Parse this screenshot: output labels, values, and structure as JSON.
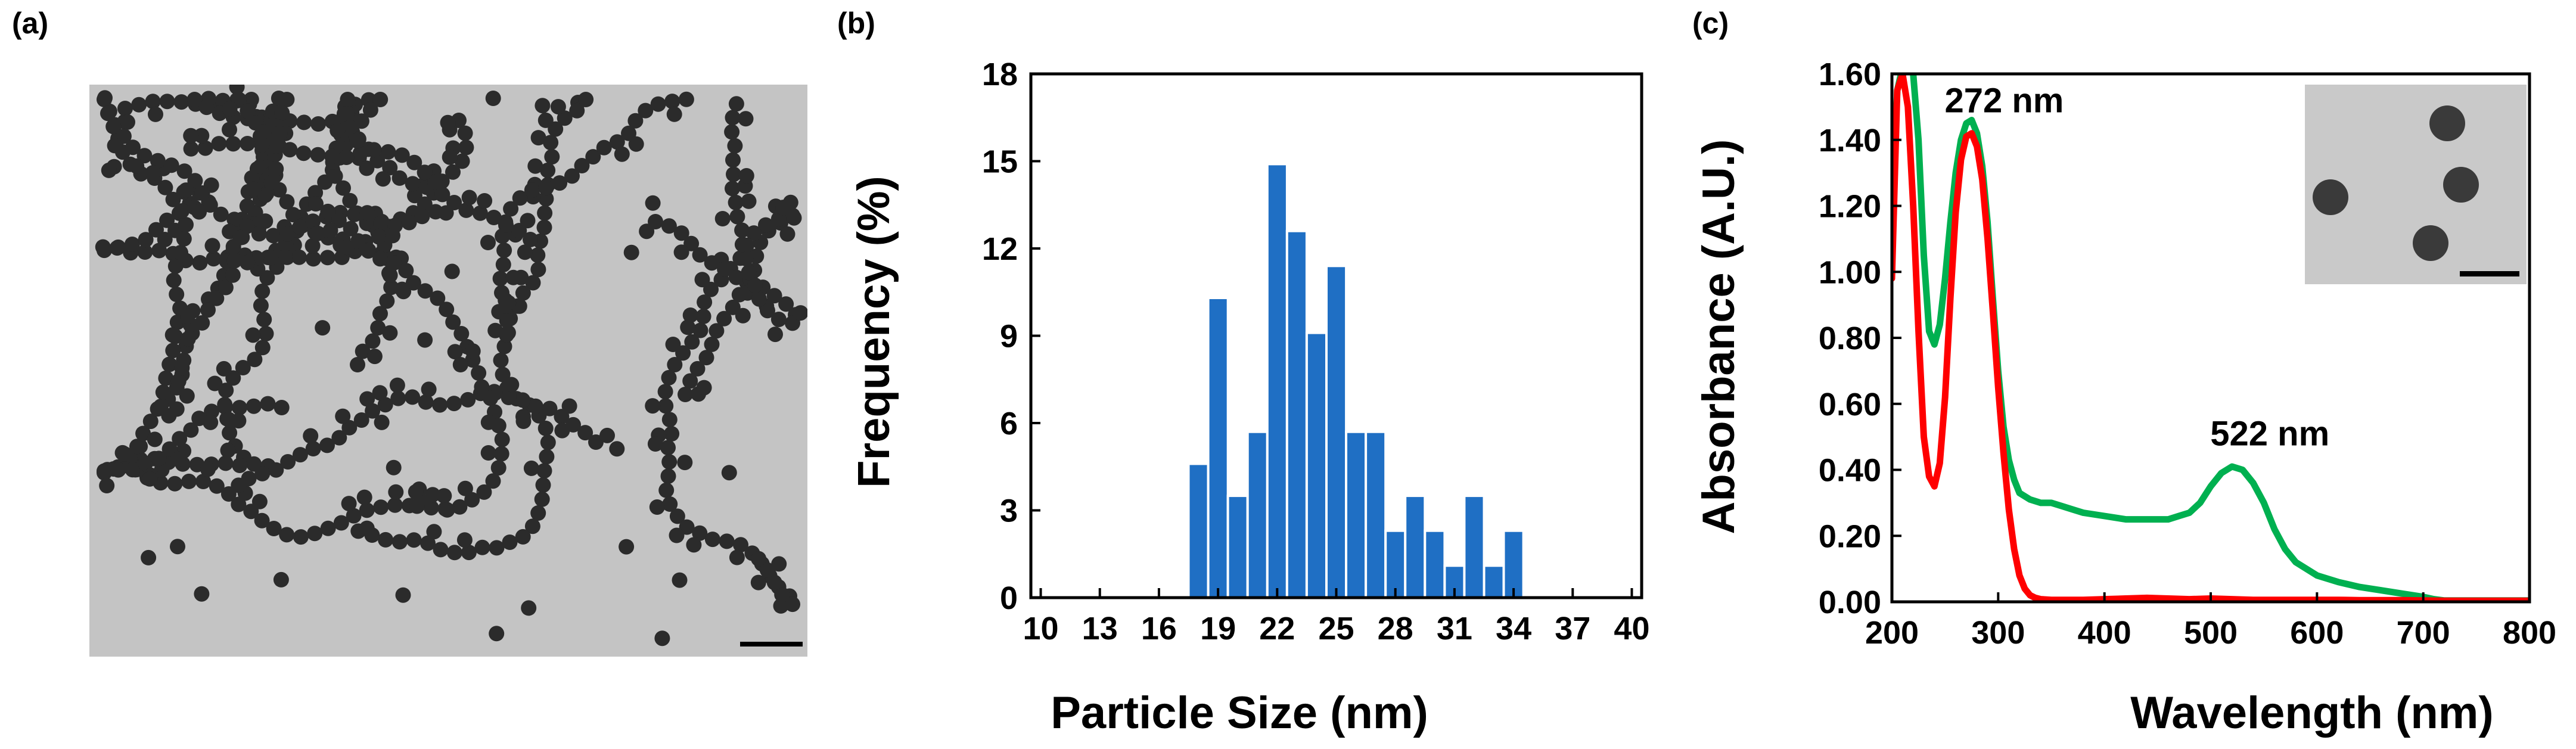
{
  "panels": {
    "a": {
      "label": "(a)"
    },
    "b": {
      "label": "(b)"
    },
    "c": {
      "label": "(c)"
    }
  },
  "chart_data": [
    {
      "type": "bar",
      "panel": "b",
      "title": "",
      "xlabel": "Particle Size (nm)",
      "ylabel": "Frequency (%)",
      "xlim": [
        9.5,
        40.5
      ],
      "ylim": [
        0,
        18
      ],
      "xticks": [
        "10",
        "13",
        "16",
        "19",
        "22",
        "25",
        "28",
        "31",
        "34",
        "37",
        "40"
      ],
      "yticks": [
        "0",
        "3",
        "6",
        "9",
        "12",
        "15",
        "18"
      ],
      "bar_color": "#1f6fc4",
      "x": [
        18,
        19,
        20,
        21,
        22,
        23,
        24,
        25,
        26,
        27,
        28,
        29,
        30,
        31,
        32,
        33,
        34
      ],
      "values": [
        4.6,
        10.3,
        3.5,
        5.7,
        14.9,
        12.6,
        9.1,
        11.4,
        5.7,
        5.7,
        2.3,
        3.5,
        2.3,
        1.1,
        3.5,
        1.1,
        2.3
      ],
      "grid": false
    },
    {
      "type": "line",
      "panel": "c",
      "title": "",
      "xlabel": "Wavelength (nm)",
      "ylabel": "Absorbance (A.U.)",
      "xlim": [
        200,
        800
      ],
      "ylim": [
        0,
        1.6
      ],
      "xticks": [
        "200",
        "300",
        "400",
        "500",
        "600",
        "700",
        "800"
      ],
      "yticks": [
        "0.00",
        "0.20",
        "0.40",
        "0.60",
        "0.80",
        "1.00",
        "1.20",
        "1.40",
        "1.60"
      ],
      "annotations": [
        {
          "text": "272 nm",
          "x": 272,
          "y": 1.52
        },
        {
          "text": "522 nm",
          "x": 522,
          "y": 0.51
        }
      ],
      "series": [
        {
          "color": "#00b050",
          "x": [
            200,
            205,
            210,
            215,
            220,
            225,
            230,
            235,
            240,
            245,
            250,
            255,
            260,
            265,
            270,
            275,
            280,
            285,
            290,
            295,
            300,
            305,
            310,
            315,
            320,
            330,
            340,
            350,
            360,
            370,
            380,
            400,
            420,
            440,
            460,
            470,
            480,
            490,
            500,
            510,
            520,
            530,
            540,
            550,
            560,
            570,
            580,
            600,
            620,
            640,
            660,
            680,
            700,
            710,
            720,
            740,
            760,
            780,
            800
          ],
          "y": [
            1.15,
            1.55,
            1.62,
            1.62,
            1.6,
            1.4,
            1.05,
            0.82,
            0.78,
            0.84,
            0.98,
            1.15,
            1.3,
            1.4,
            1.45,
            1.46,
            1.42,
            1.32,
            1.15,
            0.92,
            0.7,
            0.53,
            0.43,
            0.37,
            0.33,
            0.31,
            0.3,
            0.3,
            0.29,
            0.28,
            0.27,
            0.26,
            0.25,
            0.25,
            0.25,
            0.26,
            0.27,
            0.3,
            0.35,
            0.39,
            0.41,
            0.4,
            0.36,
            0.3,
            0.22,
            0.16,
            0.12,
            0.08,
            0.06,
            0.045,
            0.035,
            0.025,
            0.015,
            0.008,
            0.004,
            0.004,
            0.004,
            0.004,
            0.004
          ]
        },
        {
          "color": "#ff0000",
          "x": [
            200,
            205,
            210,
            215,
            220,
            225,
            230,
            235,
            240,
            245,
            250,
            255,
            260,
            265,
            270,
            275,
            280,
            285,
            290,
            295,
            300,
            305,
            310,
            315,
            320,
            325,
            330,
            335,
            340,
            350,
            360,
            380,
            400,
            420,
            440,
            460,
            480,
            500,
            520,
            540,
            560,
            580,
            600,
            620,
            640,
            660,
            680,
            700,
            720,
            740,
            760,
            780,
            800
          ],
          "y": [
            0.98,
            1.55,
            1.6,
            1.5,
            1.2,
            0.82,
            0.5,
            0.38,
            0.35,
            0.42,
            0.62,
            0.92,
            1.18,
            1.34,
            1.41,
            1.42,
            1.38,
            1.28,
            1.1,
            0.88,
            0.65,
            0.45,
            0.28,
            0.16,
            0.08,
            0.04,
            0.02,
            0.012,
            0.008,
            0.006,
            0.006,
            0.006,
            0.008,
            0.01,
            0.012,
            0.01,
            0.008,
            0.01,
            0.008,
            0.006,
            0.006,
            0.006,
            0.006,
            0.006,
            0.005,
            0.005,
            0.005,
            0.004,
            0.003,
            0.003,
            0.003,
            0.003,
            0.003
          ]
        }
      ],
      "grid": false
    }
  ]
}
